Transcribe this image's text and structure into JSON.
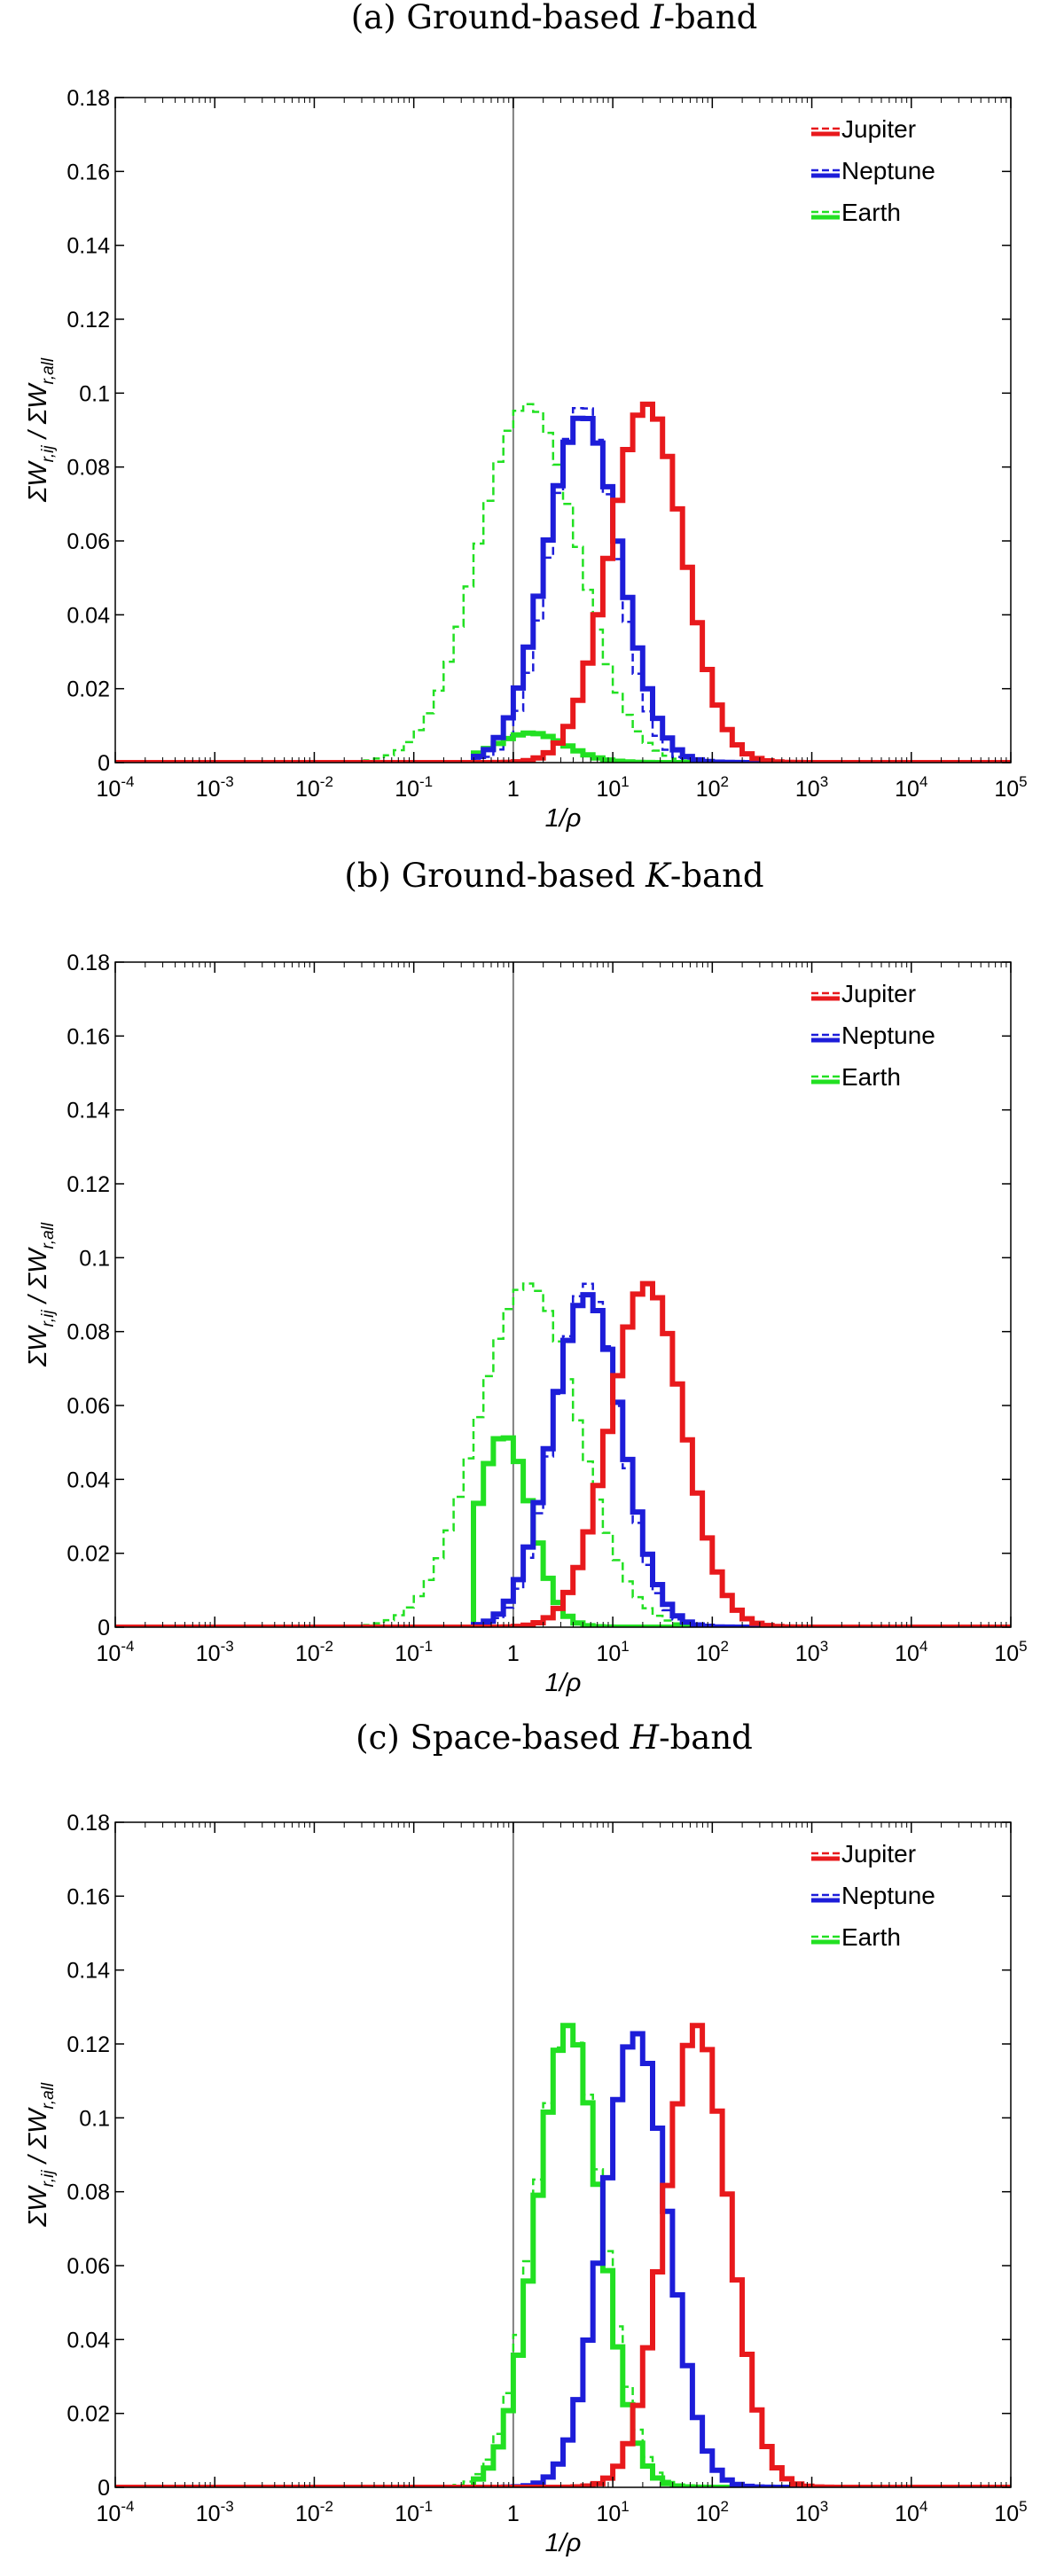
{
  "colors": {
    "jupiter": "#e8191c",
    "neptune": "#1d1dd9",
    "earth": "#22e022",
    "axis": "#000000",
    "vline": "#808080"
  },
  "legend_keys": [
    "jupiter",
    "neptune",
    "earth"
  ],
  "chart_data": [
    {
      "type": "line",
      "title_prefix": "(a) Ground-based ",
      "title_band": "I",
      "title_suffix": "-band",
      "xlabel": "1/ρ",
      "ylabel": "ΣW r,ij / ΣW r,all",
      "xscale": "log",
      "xlim": [
        0.0001,
        100000
      ],
      "ylim": [
        0,
        0.18
      ],
      "yticks": [
        "0",
        "0.02",
        "0.04",
        "0.06",
        "0.08",
        "0.1",
        "0.12",
        "0.14",
        "0.16",
        "0.18"
      ],
      "xtick_base": "10",
      "xtick_exponents": [
        "-4",
        "-3",
        "-2",
        "-1",
        "",
        "1",
        "2",
        "3",
        "4",
        "5"
      ],
      "xtick_one": "1",
      "vline_x": 1,
      "legend": [
        "Jupiter",
        "Neptune",
        "Earth"
      ],
      "legend_position": "top-right",
      "series": [
        {
          "name": "Jupiter",
          "style": "solid",
          "center": 22,
          "sigma": 0.37,
          "peak": 0.097,
          "xmin": 0.5
        },
        {
          "name": "Jupiter",
          "style": "dashed",
          "center": 22,
          "sigma": 0.37,
          "peak": 0.097,
          "xmin": 0.5
        },
        {
          "name": "Neptune",
          "style": "solid",
          "center": 5,
          "sigma": 0.37,
          "peak": 0.094,
          "xmin": 0.4
        },
        {
          "name": "Neptune",
          "style": "dashed",
          "center": 5,
          "sigma": 0.33,
          "peak": 0.097,
          "xmin": 0.3
        },
        {
          "name": "Earth",
          "style": "solid",
          "center": 1.5,
          "sigma": 0.35,
          "peak": 0.008,
          "xmin": 0.5
        },
        {
          "name": "Earth",
          "style": "dashed",
          "center": 1.4,
          "sigma": 0.5,
          "peak": 0.097,
          "xmin": 0.01
        }
      ]
    },
    {
      "type": "line",
      "title_prefix": "(b) Ground-based ",
      "title_band": "K",
      "title_suffix": "-band",
      "xlabel": "1/ρ",
      "ylabel": "ΣW r,ij / ΣW r,all",
      "xscale": "log",
      "xlim": [
        0.0001,
        100000
      ],
      "ylim": [
        0,
        0.18
      ],
      "yticks": [
        "0",
        "0.02",
        "0.04",
        "0.06",
        "0.08",
        "0.1",
        "0.12",
        "0.14",
        "0.16",
        "0.18"
      ],
      "xtick_base": "10",
      "xtick_exponents": [
        "-4",
        "-3",
        "-2",
        "-1",
        "",
        "1",
        "2",
        "3",
        "4",
        "5"
      ],
      "xtick_one": "1",
      "vline_x": 1,
      "legend": [
        "Jupiter",
        "Neptune",
        "Earth"
      ],
      "legend_position": "top-right",
      "series": [
        {
          "name": "Jupiter",
          "style": "solid",
          "center": 22,
          "sigma": 0.37,
          "peak": 0.093,
          "xmin": 0.5
        },
        {
          "name": "Jupiter",
          "style": "dashed",
          "center": 22,
          "sigma": 0.37,
          "peak": 0.093,
          "xmin": 0.5
        },
        {
          "name": "Neptune",
          "style": "solid",
          "center": 5.5,
          "sigma": 0.35,
          "peak": 0.09,
          "xmin": 0.4
        },
        {
          "name": "Neptune",
          "style": "dashed",
          "center": 5.5,
          "sigma": 0.33,
          "peak": 0.093,
          "xmin": 0.3
        },
        {
          "name": "Earth",
          "style": "solid",
          "center": 0.8,
          "sigma": 0.27,
          "peak": 0.052,
          "xmin": 0.45
        },
        {
          "name": "Earth",
          "style": "dashed",
          "center": 1.4,
          "sigma": 0.5,
          "peak": 0.093,
          "xmin": 0.01
        }
      ]
    },
    {
      "type": "line",
      "title_prefix": "(c) Space-based ",
      "title_band": "H",
      "title_suffix": "-band",
      "xlabel": "1/ρ",
      "ylabel": "ΣW r,ij / ΣW r,all",
      "xscale": "log",
      "xlim": [
        0.0001,
        100000
      ],
      "ylim": [
        0,
        0.18
      ],
      "yticks": [
        "0",
        "0.02",
        "0.04",
        "0.06",
        "0.08",
        "0.1",
        "0.12",
        "0.14",
        "0.16",
        "0.18"
      ],
      "xtick_base": "10",
      "xtick_exponents": [
        "-4",
        "-3",
        "-2",
        "-1",
        "",
        "1",
        "2",
        "3",
        "4",
        "5"
      ],
      "xtick_one": "1",
      "vline_x": 1,
      "legend": [
        "Jupiter",
        "Neptune",
        "Earth"
      ],
      "legend_position": "top-right",
      "series": [
        {
          "name": "Jupiter",
          "style": "solid",
          "center": 70,
          "sigma": 0.32,
          "peak": 0.125,
          "xmin": 0.5
        },
        {
          "name": "Jupiter",
          "style": "dashed",
          "center": 70,
          "sigma": 0.32,
          "peak": 0.125,
          "xmin": 0.5
        },
        {
          "name": "Neptune",
          "style": "solid",
          "center": 17,
          "sigma": 0.32,
          "peak": 0.123,
          "xmin": 0.5
        },
        {
          "name": "Neptune",
          "style": "dashed",
          "center": 17,
          "sigma": 0.32,
          "peak": 0.123,
          "xmin": 0.5
        },
        {
          "name": "Earth",
          "style": "solid",
          "center": 3.6,
          "sigma": 0.32,
          "peak": 0.125,
          "xmin": 0.5
        },
        {
          "name": "Earth",
          "style": "dashed",
          "center": 3.6,
          "sigma": 0.34,
          "peak": 0.125,
          "xmin": 0.1
        }
      ]
    }
  ]
}
